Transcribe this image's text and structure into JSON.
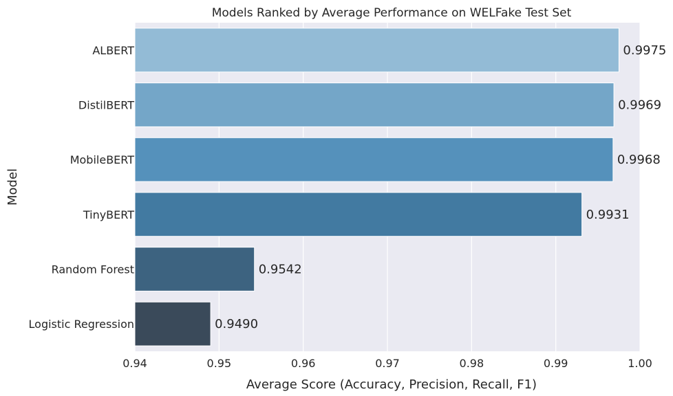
{
  "chart_data": {
    "type": "bar",
    "orientation": "horizontal",
    "title": "Models Ranked by Average Performance on WELFake Test Set",
    "xlabel": "Average Score (Accuracy, Precision, Recall, F1)",
    "ylabel": "Model",
    "categories": [
      "ALBERT",
      "DistilBERT",
      "MobileBERT",
      "TinyBERT",
      "Random Forest",
      "Logistic Regression"
    ],
    "values": [
      0.9975,
      0.9969,
      0.9968,
      0.9931,
      0.9542,
      0.949
    ],
    "value_labels": [
      "0.9975",
      "0.9969",
      "0.9968",
      "0.9931",
      "0.9542",
      "0.9490"
    ],
    "xlim": [
      0.94,
      1.0
    ],
    "xticks": [
      0.94,
      0.95,
      0.96,
      0.97,
      0.98,
      0.99,
      1.0
    ],
    "xtick_labels": [
      "0.94",
      "0.95",
      "0.96",
      "0.97",
      "0.98",
      "0.99",
      "1.00"
    ],
    "grid": true,
    "colors": {
      "background": "#eaeaf2",
      "grid": "#ffffff",
      "bars": [
        "#93bbd6",
        "#74a6c8",
        "#5591bb",
        "#427aa1",
        "#3d6380",
        "#3a4a5a"
      ]
    }
  }
}
